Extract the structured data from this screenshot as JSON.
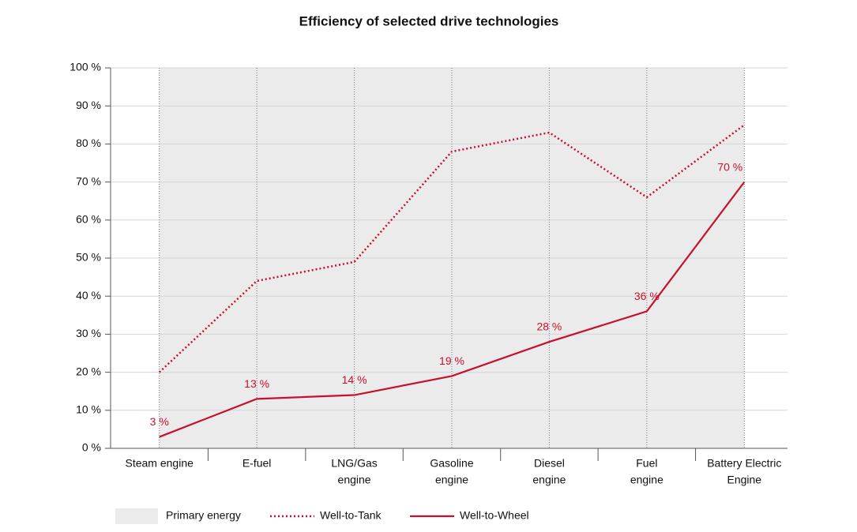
{
  "chart_data": {
    "type": "line",
    "title": "Efficiency of selected drive technologies",
    "categories": [
      [
        "Steam engine"
      ],
      [
        "E-fuel"
      ],
      [
        "LNG/Gas",
        "engine"
      ],
      [
        "Gasoline",
        "engine"
      ],
      [
        "Diesel",
        "engine"
      ],
      [
        "Fuel",
        "engine"
      ],
      [
        "Battery Electric",
        "Engine"
      ]
    ],
    "series": [
      {
        "name": "Primary energy",
        "type": "area",
        "color": "#ebebeb",
        "values": [
          100,
          100,
          100,
          100,
          100,
          100,
          100
        ]
      },
      {
        "name": "Well-to-Tank",
        "color": "#c8102e",
        "dash": "dotted",
        "values": [
          20,
          44,
          49,
          78,
          83,
          66,
          85
        ]
      },
      {
        "name": "Well-to-Wheel",
        "color": "#c8102e",
        "dash": "solid",
        "values": [
          3,
          13,
          14,
          19,
          28,
          36,
          70
        ],
        "value_labels": [
          "3 %",
          "13 %",
          "14 %",
          "19 %",
          "28 %",
          "36 %",
          "70 %"
        ]
      }
    ],
    "ylim": [
      0,
      100
    ],
    "yticks": [
      {
        "value": 0,
        "label": "0 %"
      },
      {
        "value": 10,
        "label": "10 %"
      },
      {
        "value": 20,
        "label": "20 %"
      },
      {
        "value": 30,
        "label": "30 %"
      },
      {
        "value": 40,
        "label": "40 %"
      },
      {
        "value": 50,
        "label": "50 %"
      },
      {
        "value": 60,
        "label": "60 %"
      },
      {
        "value": 70,
        "label": "70 %"
      },
      {
        "value": 80,
        "label": "80 %"
      },
      {
        "value": 90,
        "label": "90 %"
      },
      {
        "value": 100,
        "label": "100 %"
      }
    ],
    "grid": true
  }
}
